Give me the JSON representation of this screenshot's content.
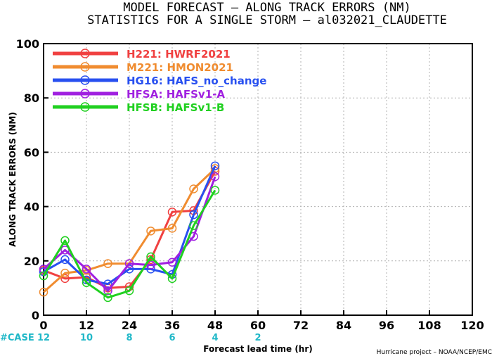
{
  "title_line1": "MODEL FORECAST – ALONG TRACK ERRORS (NM)",
  "title_line2": "STATISTICS FOR A SINGLE STORM – al032021_CLAUDETTE",
  "credit": "Hurricane project – NOAA/NCEP/EMC",
  "case_label": "#CASE",
  "case_counts": [
    {
      "x": 0,
      "label": "12"
    },
    {
      "x": 12,
      "label": "10"
    },
    {
      "x": 24,
      "label": "8"
    },
    {
      "x": 36,
      "label": "6"
    },
    {
      "x": 48,
      "label": "4"
    },
    {
      "x": 60,
      "label": "2"
    }
  ],
  "chart_data": {
    "type": "line",
    "title": "MODEL FORECAST – ALONG TRACK ERRORS (NM)",
    "subtitle": "STATISTICS FOR A SINGLE STORM – al032021_CLAUDETTE",
    "xlabel": "Forecast lead time (hr)",
    "ylabel": "ALONG TRACK ERRORS (NM)",
    "xlim": [
      0,
      120
    ],
    "ylim": [
      0,
      100
    ],
    "xticks": [
      0,
      12,
      24,
      36,
      48,
      60,
      72,
      84,
      96,
      108,
      120
    ],
    "yticks": [
      0,
      20,
      40,
      60,
      80,
      100
    ],
    "grid": true,
    "legend_position": "top-left",
    "series": [
      {
        "name": "H221: HWRF2021",
        "color": "#f04040",
        "x": [
          0,
          6,
          12,
          18,
          24,
          30,
          36,
          42,
          48
        ],
        "y": [
          16.5,
          13.5,
          14,
          10,
          10.5,
          20.5,
          38,
          38.5,
          53
        ]
      },
      {
        "name": "M221: HMON2021",
        "color": "#f08c30",
        "x": [
          0,
          6,
          12,
          18,
          24,
          30,
          36,
          42,
          48
        ],
        "y": [
          8.5,
          15.5,
          16.5,
          19,
          19,
          31,
          32,
          46.5,
          54
        ]
      },
      {
        "name": "HG16: HAFS_no_change",
        "color": "#2850f0",
        "x": [
          0,
          6,
          12,
          18,
          24,
          30,
          36,
          42,
          48
        ],
        "y": [
          16,
          20.5,
          13,
          11.5,
          17,
          17,
          15,
          37,
          55
        ]
      },
      {
        "name": "HFSA: HAFSv1-A",
        "color": "#a020e0",
        "x": [
          0,
          6,
          12,
          18,
          24,
          30,
          36,
          42,
          48
        ],
        "y": [
          17,
          24,
          17,
          9,
          19,
          18.5,
          19.5,
          29,
          51
        ]
      },
      {
        "name": "HFSB: HAFSv1-B",
        "color": "#20d020",
        "x": [
          0,
          6,
          12,
          18,
          24,
          30,
          36,
          42,
          48
        ],
        "y": [
          14.5,
          27.5,
          12,
          6.5,
          9,
          21.5,
          13.5,
          33,
          46
        ]
      }
    ]
  }
}
